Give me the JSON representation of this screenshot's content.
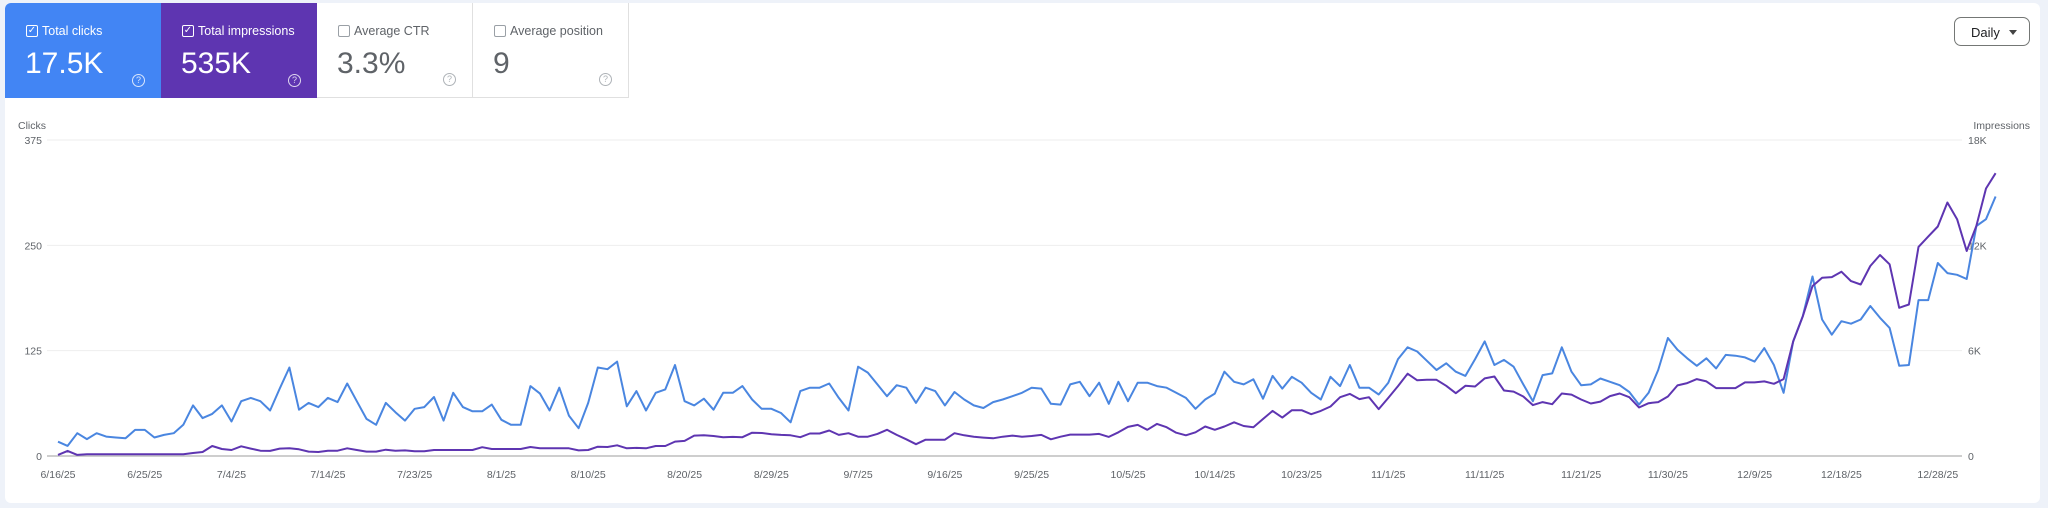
{
  "cards": [
    {
      "label": "Total clicks",
      "value": "17.5K",
      "checked": true,
      "color": "#4285f4"
    },
    {
      "label": "Total impressions",
      "value": "535K",
      "checked": true,
      "color": "#5e35b1"
    },
    {
      "label": "Average CTR",
      "value": "3.3%",
      "checked": false
    },
    {
      "label": "Average position",
      "value": "9",
      "checked": false
    }
  ],
  "granularity": "Daily",
  "chart_data": {
    "type": "line",
    "grid": true,
    "y_left": {
      "label": "Clicks",
      "ticks": [
        "0",
        "125",
        "250",
        "375"
      ],
      "range": [
        0,
        375
      ]
    },
    "y_right": {
      "label": "Impressions",
      "ticks": [
        "0",
        "6K",
        "12K",
        "18K"
      ],
      "range": [
        0,
        18000
      ]
    },
    "x_ticks": [
      "6/16/25",
      "6/25/25",
      "7/4/25",
      "7/14/25",
      "7/23/25",
      "8/1/25",
      "8/10/25",
      "8/20/25",
      "8/29/25",
      "9/7/25",
      "9/16/25",
      "9/25/25",
      "10/5/25",
      "10/14/25",
      "10/23/25",
      "11/1/25",
      "11/11/25",
      "11/21/25",
      "11/30/25",
      "12/9/25",
      "12/18/25",
      "12/28/25"
    ],
    "x": [
      "6/16/25",
      "6/17/25",
      "6/18/25",
      "6/19/25",
      "6/20/25",
      "6/21/25",
      "6/22/25",
      "6/23/25",
      "6/24/25",
      "6/25/25",
      "6/26/25",
      "6/27/25",
      "6/28/25",
      "6/29/25",
      "6/30/25",
      "7/1/25",
      "7/2/25",
      "7/3/25",
      "7/4/25",
      "7/5/25",
      "7/6/25",
      "7/7/25",
      "7/8/25",
      "7/9/25",
      "7/10/25",
      "7/11/25",
      "7/12/25",
      "7/13/25",
      "7/14/25",
      "7/15/25",
      "7/16/25",
      "7/17/25",
      "7/18/25",
      "7/19/25",
      "7/20/25",
      "7/21/25",
      "7/22/25",
      "7/23/25",
      "7/24/25",
      "7/25/25",
      "7/26/25",
      "7/27/25",
      "7/28/25",
      "7/29/25",
      "7/30/25",
      "7/31/25",
      "8/1/25",
      "8/2/25",
      "8/3/25",
      "8/4/25",
      "8/5/25",
      "8/6/25",
      "8/7/25",
      "8/8/25",
      "8/9/25",
      "8/10/25",
      "8/11/25",
      "8/12/25",
      "8/13/25",
      "8/14/25",
      "8/15/25",
      "8/16/25",
      "8/17/25",
      "8/18/25",
      "8/19/25",
      "8/20/25",
      "8/21/25",
      "8/22/25",
      "8/23/25",
      "8/24/25",
      "8/25/25",
      "8/26/25",
      "8/27/25",
      "8/28/25",
      "8/29/25",
      "8/30/25",
      "8/31/25",
      "9/1/25",
      "9/2/25",
      "9/3/25",
      "9/4/25",
      "9/5/25",
      "9/6/25",
      "9/7/25",
      "9/8/25",
      "9/9/25",
      "9/10/25",
      "9/11/25",
      "9/12/25",
      "9/13/25",
      "9/14/25",
      "9/15/25",
      "9/16/25",
      "9/17/25",
      "9/18/25",
      "9/19/25",
      "9/20/25",
      "9/21/25",
      "9/22/25",
      "9/23/25",
      "9/24/25",
      "9/25/25",
      "9/26/25",
      "9/27/25",
      "9/28/25",
      "9/29/25",
      "9/30/25",
      "10/1/25",
      "10/2/25",
      "10/3/25",
      "10/4/25",
      "10/5/25",
      "10/6/25",
      "10/7/25",
      "10/8/25",
      "10/9/25",
      "10/10/25",
      "10/11/25",
      "10/12/25",
      "10/13/25",
      "10/14/25",
      "10/15/25",
      "10/16/25",
      "10/17/25",
      "10/18/25",
      "10/19/25",
      "10/20/25",
      "10/21/25",
      "10/22/25",
      "10/23/25",
      "10/24/25",
      "10/25/25",
      "10/26/25",
      "10/27/25",
      "10/28/25",
      "10/29/25",
      "10/30/25",
      "10/31/25",
      "11/1/25",
      "11/2/25",
      "11/3/25",
      "11/4/25",
      "11/5/25",
      "11/6/25",
      "11/7/25",
      "11/8/25",
      "11/9/25",
      "11/10/25",
      "11/11/25",
      "11/12/25",
      "11/13/25",
      "11/14/25",
      "11/15/25",
      "11/16/25",
      "11/17/25",
      "11/18/25",
      "11/19/25",
      "11/20/25",
      "11/21/25",
      "11/22/25",
      "11/23/25",
      "11/24/25",
      "11/25/25",
      "11/26/25",
      "11/27/25",
      "11/28/25",
      "11/29/25",
      "11/30/25",
      "12/1/25",
      "12/2/25",
      "12/3/25",
      "12/4/25",
      "12/5/25",
      "12/6/25",
      "12/7/25",
      "12/8/25",
      "12/9/25",
      "12/10/25",
      "12/11/25",
      "12/12/25",
      "12/13/25",
      "12/14/25",
      "12/15/25",
      "12/16/25",
      "12/17/25",
      "12/18/25",
      "12/19/25",
      "12/20/25",
      "12/21/25",
      "12/22/25",
      "12/23/25",
      "12/24/25",
      "12/25/25",
      "12/26/25",
      "12/27/25",
      "12/28/25",
      "12/29/25",
      "12/30/25",
      "12/31/25",
      "1/1/26",
      "1/2/26",
      "1/3/26"
    ],
    "series": [
      {
        "name": "Clicks",
        "axis": "left",
        "color": "#4a86e0",
        "values": [
          17,
          12,
          27,
          20,
          27,
          23,
          22,
          21,
          31,
          31,
          22,
          25,
          27,
          37,
          60,
          45,
          50,
          60,
          41,
          65,
          69,
          65,
          54,
          80,
          105,
          55,
          63,
          58,
          69,
          64,
          86,
          65,
          44,
          37,
          63,
          52,
          42,
          56,
          58,
          70,
          42,
          75,
          58,
          53,
          53,
          61,
          43,
          37,
          37,
          83,
          74,
          54,
          81,
          48,
          33,
          63,
          105,
          103,
          112,
          59,
          77,
          54,
          75,
          79,
          108,
          65,
          60,
          68,
          55,
          75,
          75,
          83,
          67,
          56,
          56,
          51,
          40,
          77,
          81,
          81,
          86,
          69,
          54,
          106,
          99,
          85,
          71,
          84,
          81,
          63,
          81,
          77,
          60,
          76,
          67,
          60,
          57,
          64,
          67,
          71,
          75,
          81,
          80,
          62,
          61,
          85,
          88,
          71,
          87,
          62,
          88,
          65,
          87,
          87,
          83,
          81,
          75,
          69,
          56,
          67,
          74,
          100,
          88,
          85,
          91,
          68,
          95,
          80,
          94,
          87,
          75,
          67,
          94,
          83,
          108,
          81,
          81,
          73,
          87,
          115,
          129,
          124,
          113,
          102,
          110,
          100,
          95,
          115,
          136,
          108,
          114,
          106,
          85,
          65,
          96,
          98,
          129,
          100,
          84,
          85,
          92,
          88,
          84,
          76,
          61,
          75,
          102,
          140,
          126,
          116,
          107,
          116,
          104,
          120,
          119,
          117,
          112,
          128,
          108,
          75,
          136,
          166,
          213,
          162,
          144,
          160,
          157,
          162,
          178,
          164,
          152,
          107,
          108,
          185,
          185,
          229,
          217,
          215,
          210,
          273,
          281,
          308
        ]
      },
      {
        "name": "Impressions",
        "axis": "right",
        "color": "#5e35b1",
        "values": [
          60,
          290,
          60,
          100,
          100,
          100,
          100,
          100,
          100,
          100,
          100,
          100,
          100,
          100,
          170,
          230,
          570,
          400,
          340,
          550,
          420,
          300,
          290,
          420,
          440,
          380,
          250,
          230,
          300,
          300,
          440,
          340,
          250,
          250,
          360,
          300,
          320,
          270,
          270,
          340,
          340,
          340,
          340,
          340,
          500,
          400,
          400,
          400,
          400,
          510,
          440,
          440,
          440,
          440,
          320,
          340,
          530,
          510,
          610,
          440,
          460,
          440,
          570,
          570,
          820,
          860,
          1160,
          1180,
          1140,
          1070,
          1090,
          1070,
          1330,
          1310,
          1240,
          1200,
          1180,
          1070,
          1280,
          1280,
          1450,
          1200,
          1300,
          1100,
          1100,
          1260,
          1490,
          1200,
          950,
          670,
          930,
          930,
          930,
          1300,
          1180,
          1100,
          1050,
          1010,
          1100,
          1160,
          1100,
          1140,
          1200,
          950,
          1100,
          1220,
          1220,
          1220,
          1260,
          1090,
          1350,
          1660,
          1770,
          1490,
          1830,
          1640,
          1330,
          1180,
          1350,
          1680,
          1490,
          1680,
          1920,
          1710,
          1640,
          2110,
          2570,
          2190,
          2610,
          2610,
          2380,
          2570,
          2820,
          3350,
          3540,
          3240,
          3350,
          2670,
          3310,
          3980,
          4690,
          4310,
          4340,
          4340,
          4000,
          3580,
          4000,
          3960,
          4420,
          4530,
          3730,
          3670,
          3390,
          2900,
          3070,
          2950,
          3560,
          3500,
          3220,
          2990,
          3100,
          3410,
          3560,
          3350,
          2760,
          3010,
          3070,
          3390,
          4020,
          4150,
          4380,
          4250,
          3870,
          3870,
          3870,
          4190,
          4190,
          4250,
          4110,
          4380,
          6530,
          7960,
          9680,
          10150,
          10190,
          10500,
          9960,
          9770,
          10820,
          11450,
          10920,
          8440,
          8630,
          11910,
          12500,
          13070,
          14440,
          13490,
          11680,
          13110,
          15240,
          16110
        ]
      }
    ]
  }
}
